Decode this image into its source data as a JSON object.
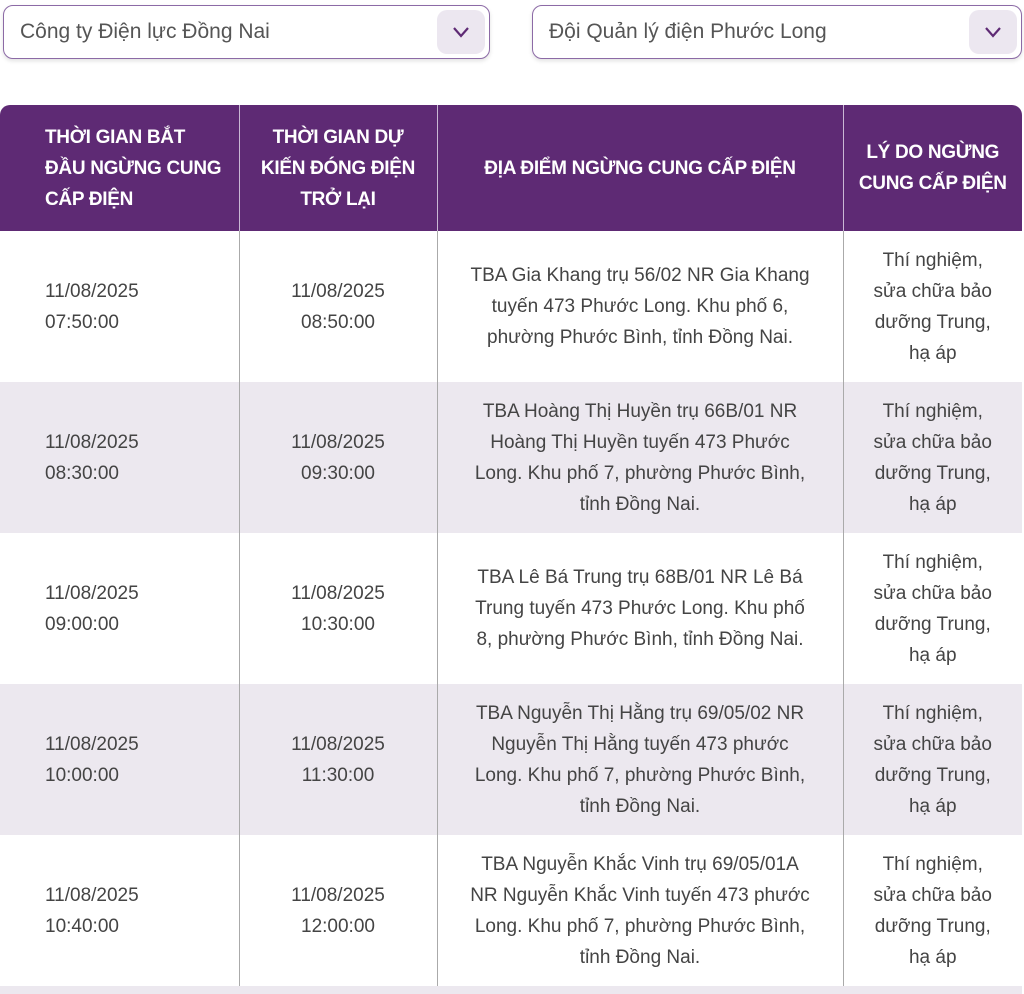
{
  "filters": {
    "company": "Công ty Điện lực Đồng Nai",
    "team": "Đội Quản lý điện Phước Long"
  },
  "table": {
    "headers": [
      "THỜI GIAN BẮT\nĐẦU NGỪNG CUNG\nCẤP ĐIỆN",
      "THỜI GIAN DỰ\nKIẾN ĐÓNG ĐIỆN\nTRỞ LẠI",
      "ĐỊA ĐIỂM NGỪNG CUNG CẤP ĐIỆN",
      "LÝ DO NGỪNG\nCUNG CẤP ĐIỆN"
    ],
    "rows": [
      {
        "start": "11/08/2025\n07:50:00",
        "end": "11/08/2025\n08:50:00",
        "location": "TBA Gia Khang trụ 56/02 NR Gia Khang\ntuyến 473 Phước Long. Khu phố 6,\nphường Phước Bình, tỉnh Đồng Nai.",
        "reason": "Thí nghiệm,\nsửa chữa bảo\ndưỡng Trung,\nhạ áp"
      },
      {
        "start": "11/08/2025\n08:30:00",
        "end": "11/08/2025\n09:30:00",
        "location": "TBA Hoàng Thị Huyền trụ 66B/01 NR\nHoàng Thị Huyền tuyến 473 Phước\nLong. Khu phố 7, phường Phước Bình,\ntỉnh Đồng Nai.",
        "reason": "Thí nghiệm,\nsửa chữa bảo\ndưỡng Trung,\nhạ áp"
      },
      {
        "start": "11/08/2025\n09:00:00",
        "end": "11/08/2025\n10:30:00",
        "location": "TBA Lê Bá Trung trụ 68B/01 NR Lê Bá\nTrung tuyến 473 Phước Long. Khu phố\n8, phường Phước Bình, tỉnh Đồng Nai.",
        "reason": "Thí nghiệm,\nsửa chữa bảo\ndưỡng Trung,\nhạ áp"
      },
      {
        "start": "11/08/2025\n10:00:00",
        "end": "11/08/2025\n11:30:00",
        "location": "TBA Nguyễn Thị Hằng trụ 69/05/02 NR\nNguyễn Thị Hằng tuyến 473 phước\nLong. Khu phố 7, phường Phước Bình,\ntỉnh Đồng Nai.",
        "reason": "Thí nghiệm,\nsửa chữa bảo\ndưỡng Trung,\nhạ áp"
      },
      {
        "start": "11/08/2025\n10:40:00",
        "end": "11/08/2025\n12:00:00",
        "location": "TBA Nguyễn Khắc Vinh trụ 69/05/01A\nNR Nguyễn Khắc Vinh tuyến 473 phước\nLong. Khu phố 7, phường Phước Bình,\ntỉnh Đồng Nai.",
        "reason": "Thí nghiệm,\nsửa chữa bảo\ndưỡng Trung,\nhạ áp"
      }
    ]
  },
  "colors": {
    "header": "#5e2a74",
    "alt_row": "#ece8ef"
  }
}
